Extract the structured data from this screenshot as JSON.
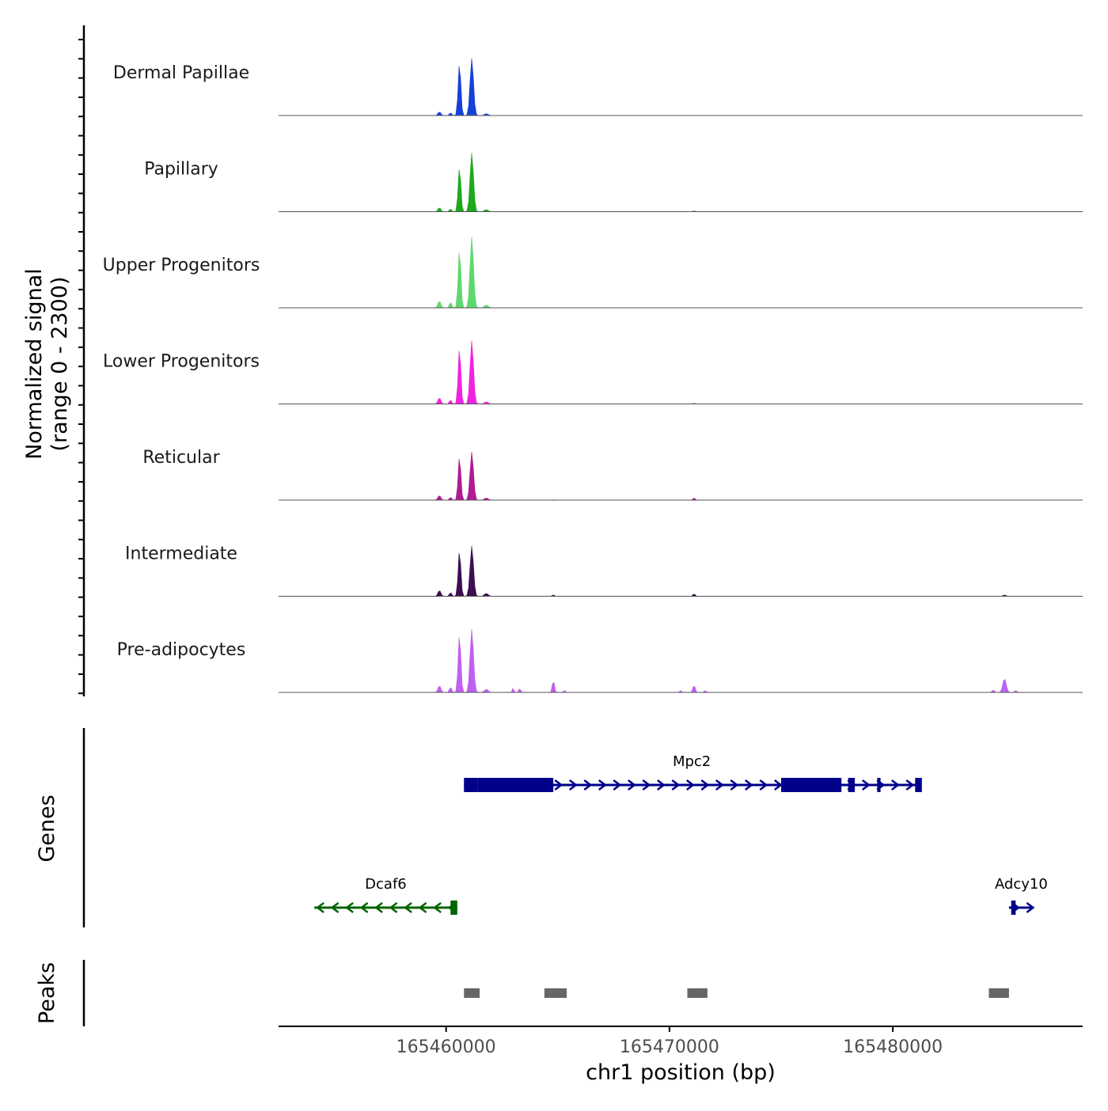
{
  "chart_data": {
    "type": "area",
    "title": "",
    "xlabel": "chr1 position (bp)",
    "ylabel": "Normalized signal\n(range 0 - 2300)",
    "y_range": [
      0,
      2300
    ],
    "xlim": [
      165452500,
      165488500
    ],
    "x_ticks": [
      165460000,
      165470000,
      165480000
    ],
    "x_tick_labels": [
      "165460000",
      "165470000",
      "165480000"
    ],
    "tracks": [
      {
        "name": "Dermal Papillae",
        "color": "#1740d8",
        "peaks": [
          {
            "x": 165460600,
            "value": 1700,
            "width": 140
          },
          {
            "x": 165461150,
            "value": 1850,
            "width": 180
          },
          {
            "x": 165459700,
            "value": 120,
            "width": 150
          },
          {
            "x": 165460200,
            "value": 90,
            "width": 120
          },
          {
            "x": 165461800,
            "value": 60,
            "width": 200
          }
        ]
      },
      {
        "name": "Papillary",
        "color": "#1ea81e",
        "peaks": [
          {
            "x": 165460600,
            "value": 1450,
            "width": 140
          },
          {
            "x": 165461150,
            "value": 1900,
            "width": 180
          },
          {
            "x": 165459700,
            "value": 130,
            "width": 150
          },
          {
            "x": 165460200,
            "value": 90,
            "width": 120
          },
          {
            "x": 165461800,
            "value": 70,
            "width": 200
          },
          {
            "x": 165471100,
            "value": 30,
            "width": 120
          }
        ]
      },
      {
        "name": "Upper Progenitors",
        "color": "#5ed86e",
        "peaks": [
          {
            "x": 165460600,
            "value": 1900,
            "width": 140
          },
          {
            "x": 165461150,
            "value": 2300,
            "width": 180
          },
          {
            "x": 165459700,
            "value": 220,
            "width": 150
          },
          {
            "x": 165460200,
            "value": 180,
            "width": 120
          },
          {
            "x": 165461800,
            "value": 90,
            "width": 200
          }
        ]
      },
      {
        "name": "Lower Progenitors",
        "color": "#ee25e0",
        "peaks": [
          {
            "x": 165460600,
            "value": 1830,
            "width": 140
          },
          {
            "x": 165461150,
            "value": 2050,
            "width": 180
          },
          {
            "x": 165459700,
            "value": 200,
            "width": 150
          },
          {
            "x": 165460200,
            "value": 130,
            "width": 120
          },
          {
            "x": 165461800,
            "value": 70,
            "width": 200
          },
          {
            "x": 165471100,
            "value": 25,
            "width": 120
          }
        ]
      },
      {
        "name": "Reticular",
        "color": "#b01a92",
        "peaks": [
          {
            "x": 165460600,
            "value": 1420,
            "width": 140
          },
          {
            "x": 165461150,
            "value": 1560,
            "width": 180
          },
          {
            "x": 165459700,
            "value": 150,
            "width": 150
          },
          {
            "x": 165460200,
            "value": 90,
            "width": 120
          },
          {
            "x": 165461800,
            "value": 70,
            "width": 200
          },
          {
            "x": 165471100,
            "value": 70,
            "width": 120
          },
          {
            "x": 165464800,
            "value": 15,
            "width": 100
          }
        ]
      },
      {
        "name": "Intermediate",
        "color": "#3d0f52",
        "peaks": [
          {
            "x": 165460600,
            "value": 1490,
            "width": 140
          },
          {
            "x": 165461150,
            "value": 1620,
            "width": 180
          },
          {
            "x": 165459700,
            "value": 190,
            "width": 150
          },
          {
            "x": 165460200,
            "value": 120,
            "width": 120
          },
          {
            "x": 165461800,
            "value": 90,
            "width": 200
          },
          {
            "x": 165464800,
            "value": 50,
            "width": 100
          },
          {
            "x": 165471100,
            "value": 80,
            "width": 120
          },
          {
            "x": 165485000,
            "value": 40,
            "width": 160
          }
        ]
      },
      {
        "name": "Pre-adipocytes",
        "color": "#c060f0",
        "peaks": [
          {
            "x": 165460600,
            "value": 1900,
            "width": 140
          },
          {
            "x": 165461150,
            "value": 2050,
            "width": 180
          },
          {
            "x": 165459700,
            "value": 220,
            "width": 150
          },
          {
            "x": 165460200,
            "value": 170,
            "width": 120
          },
          {
            "x": 165461800,
            "value": 100,
            "width": 200
          },
          {
            "x": 165463000,
            "value": 140,
            "width": 90
          },
          {
            "x": 165463300,
            "value": 160,
            "width": 80
          },
          {
            "x": 165464800,
            "value": 400,
            "width": 110
          },
          {
            "x": 165465300,
            "value": 70,
            "width": 90
          },
          {
            "x": 165470500,
            "value": 60,
            "width": 110
          },
          {
            "x": 165471100,
            "value": 240,
            "width": 120
          },
          {
            "x": 165471600,
            "value": 60,
            "width": 110
          },
          {
            "x": 165485000,
            "value": 450,
            "width": 180
          },
          {
            "x": 165484500,
            "value": 80,
            "width": 120
          },
          {
            "x": 165485500,
            "value": 60,
            "width": 120
          }
        ]
      }
    ],
    "genes": [
      {
        "name": "Mpc2",
        "start": 165460800,
        "end": 165481200,
        "strand": "+",
        "color": "#00008b",
        "exons": [
          [
            165460800,
            165461400
          ],
          [
            165461400,
            165464800
          ],
          [
            165475000,
            165477700
          ],
          [
            165478000,
            165478300
          ],
          [
            165479300,
            165479450
          ],
          [
            165481000,
            165481300
          ]
        ]
      },
      {
        "name": "Dcaf6",
        "start": 165454100,
        "end": 165460500,
        "strand": "-",
        "color": "#006400",
        "exons": [
          [
            165460200,
            165460500
          ]
        ]
      },
      {
        "name": "Adcy10",
        "start": 165485200,
        "end": 165486300,
        "strand": "+",
        "color": "#00008b",
        "exons": [
          [
            165485300,
            165485500
          ]
        ]
      }
    ],
    "peaks_track": [
      [
        165460800,
        165461500
      ],
      [
        165464400,
        165465400
      ],
      [
        165470800,
        165471700
      ],
      [
        165484300,
        165485200
      ]
    ],
    "panel_labels": {
      "genes": "Genes",
      "peaks": "Peaks"
    }
  }
}
